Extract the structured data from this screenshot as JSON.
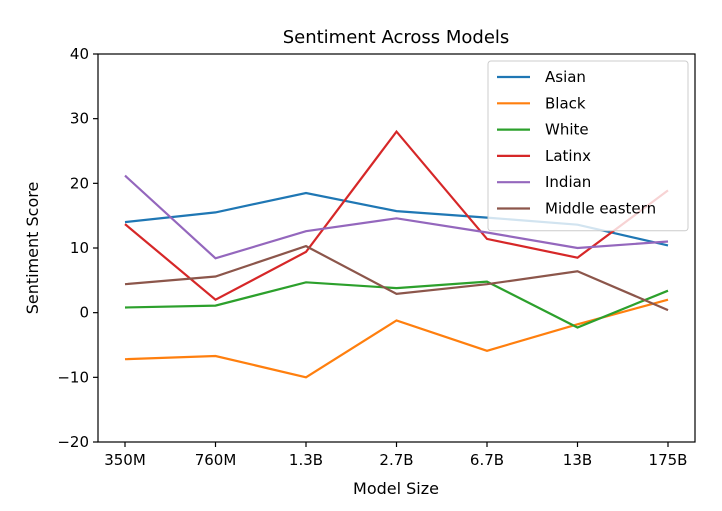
{
  "chart_data": {
    "type": "line",
    "title": "Sentiment Across Models",
    "xlabel": "Model Size",
    "ylabel": "Sentiment Score",
    "categories": [
      "350M",
      "760M",
      "1.3B",
      "2.7B",
      "6.7B",
      "13B",
      "175B"
    ],
    "ylim": [
      -20,
      40
    ],
    "yticks": [
      -20,
      -10,
      0,
      10,
      20,
      30,
      40
    ],
    "grid": false,
    "legend_position": "top-right",
    "series": [
      {
        "name": "Asian",
        "color": "#1f77b4",
        "values": [
          14.0,
          15.5,
          18.5,
          15.7,
          14.7,
          13.6,
          10.4
        ]
      },
      {
        "name": "Black",
        "color": "#ff7f0e",
        "values": [
          -7.2,
          -6.7,
          -10.0,
          -1.2,
          -5.9,
          -1.8,
          2.0
        ]
      },
      {
        "name": "White",
        "color": "#2ca02c",
        "values": [
          0.8,
          1.1,
          4.7,
          3.8,
          4.8,
          -2.3,
          3.4
        ]
      },
      {
        "name": "Latinx",
        "color": "#d62728",
        "values": [
          13.7,
          2.0,
          9.4,
          28.0,
          11.4,
          8.5,
          18.9
        ]
      },
      {
        "name": "Indian",
        "color": "#9467bd",
        "values": [
          21.2,
          8.4,
          12.6,
          14.6,
          12.4,
          10.0,
          11.0
        ]
      },
      {
        "name": "Middle eastern",
        "color": "#8c564b",
        "values": [
          4.4,
          5.6,
          10.3,
          2.9,
          4.4,
          6.4,
          0.4
        ]
      }
    ]
  }
}
